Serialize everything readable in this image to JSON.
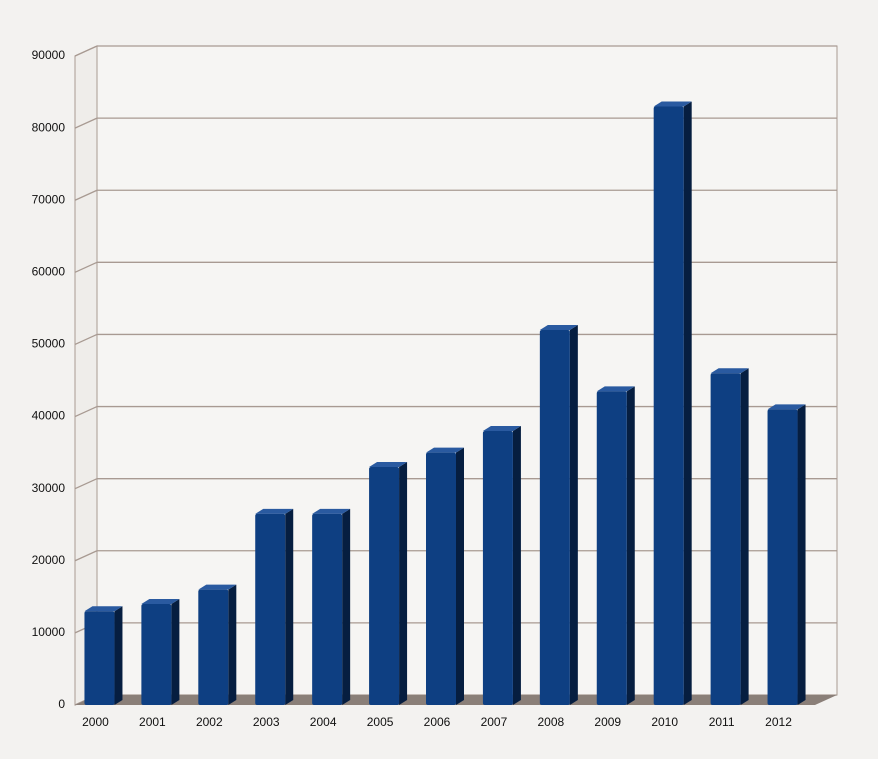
{
  "chart_data": {
    "type": "bar",
    "categories": [
      "2000",
      "2001",
      "2002",
      "2003",
      "2004",
      "2005",
      "2006",
      "2007",
      "2008",
      "2009",
      "2010",
      "2011",
      "2012"
    ],
    "values": [
      13000,
      14000,
      16000,
      26500,
      26500,
      33000,
      35000,
      38000,
      52000,
      43500,
      83000,
      46000,
      41000
    ],
    "color": "#0e3f82",
    "ylim": [
      0,
      90000
    ],
    "yticks": [
      0,
      10000,
      20000,
      30000,
      40000,
      50000,
      60000,
      70000,
      80000,
      90000
    ],
    "grid": true
  }
}
